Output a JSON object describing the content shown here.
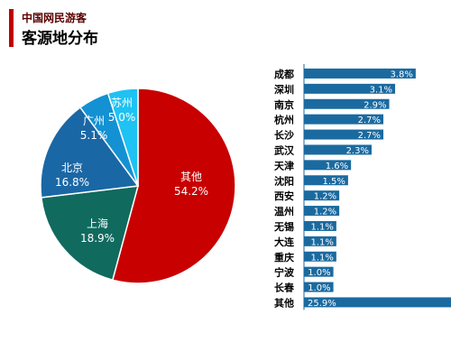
{
  "header": {
    "title": "中国网民游客",
    "subtitle": "客源地分布"
  },
  "colors": {
    "accent": "#c00000",
    "bar": "#1a6aa0"
  },
  "chart_data": [
    {
      "type": "pie",
      "labels": [
        "其他",
        "上海",
        "北京",
        "广州",
        "苏州"
      ],
      "values": [
        54.2,
        18.9,
        16.8,
        5.1,
        5.0
      ],
      "value_labels": [
        "54.2%",
        "18.9%",
        "16.8%",
        "5.1%",
        "5.0%"
      ],
      "colors": [
        "#c80000",
        "#106a5e",
        "#1a67a5",
        "#1391d3",
        "#1ec2f3"
      ],
      "legend": "none"
    },
    {
      "type": "bar",
      "orientation": "horizontal",
      "categories": [
        "成都",
        "深圳",
        "南京",
        "杭州",
        "长沙",
        "武汉",
        "天津",
        "沈阳",
        "西安",
        "温州",
        "无锡",
        "大连",
        "重庆",
        "宁波",
        "长春",
        "其他"
      ],
      "values": [
        3.8,
        3.1,
        2.9,
        2.7,
        2.7,
        2.3,
        1.6,
        1.5,
        1.2,
        1.2,
        1.1,
        1.1,
        1.1,
        1.0,
        1.0,
        25.9
      ],
      "value_labels": [
        "3.8%",
        "3.1%",
        "2.9%",
        "2.7%",
        "2.7%",
        "2.3%",
        "1.6%",
        "1.5%",
        "1.2%",
        "1.2%",
        "1.1%",
        "1.1%",
        "1.1%",
        "1.0%",
        "1.0%",
        "25.9%"
      ],
      "grid": false,
      "legend": "none"
    }
  ]
}
